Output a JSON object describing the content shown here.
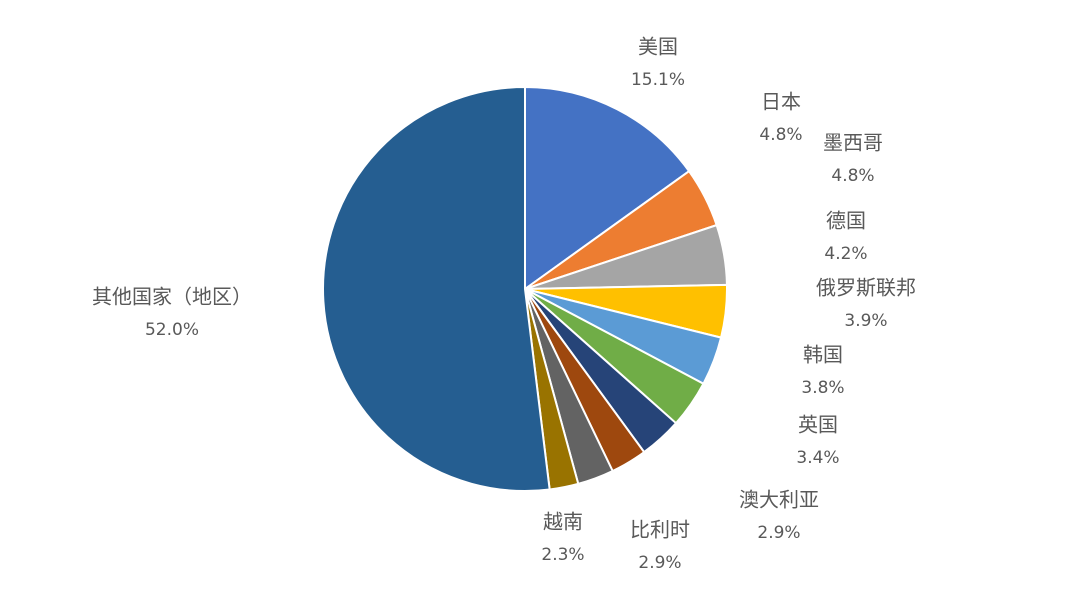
{
  "chart_data": {
    "type": "pie",
    "title": "",
    "start_angle_deg": 0,
    "direction": "clockwise",
    "legend": "none",
    "slices": [
      {
        "label": "美国",
        "value": 15.1,
        "value_label": "15.1%",
        "color": "#4472C4"
      },
      {
        "label": "日本",
        "value": 4.8,
        "value_label": "4.8%",
        "color": "#ED7D31"
      },
      {
        "label": "墨西哥",
        "value": 4.8,
        "value_label": "4.8%",
        "color": "#A5A5A5"
      },
      {
        "label": "德国",
        "value": 4.2,
        "value_label": "4.2%",
        "color": "#FFC000"
      },
      {
        "label": "俄罗斯联邦",
        "value": 3.9,
        "value_label": "3.9%",
        "color": "#5B9BD5"
      },
      {
        "label": "韩国",
        "value": 3.8,
        "value_label": "3.8%",
        "color": "#70AD47"
      },
      {
        "label": "英国",
        "value": 3.4,
        "value_label": "3.4%",
        "color": "#264478"
      },
      {
        "label": "澳大利亚",
        "value": 2.9,
        "value_label": "2.9%",
        "color": "#9E480E"
      },
      {
        "label": "比利时",
        "value": 2.9,
        "value_label": "2.9%",
        "color": "#636363"
      },
      {
        "label": "越南",
        "value": 2.3,
        "value_label": "2.3%",
        "color": "#997300"
      },
      {
        "label": "其他国家（地区）",
        "value": 52.0,
        "value_label": "52.0%",
        "color": "#255E91"
      }
    ]
  }
}
